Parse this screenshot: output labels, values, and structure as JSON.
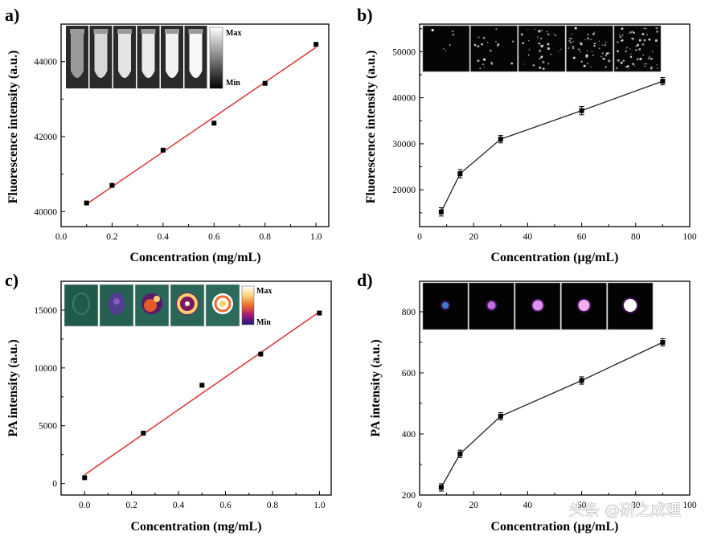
{
  "figure": {
    "watermark": "头条 @研之成理"
  },
  "colors": {
    "fit_line": "#d94040",
    "series": "#000000",
    "axis": "#000000"
  },
  "chart_data": [
    {
      "panel": "a)",
      "type": "scatter",
      "xlabel": "Concentration (mg/mL)",
      "ylabel": "Fluorescence intensity (a.u.)",
      "xlim": [
        0.0,
        1.05
      ],
      "ylim": [
        39600,
        45000
      ],
      "xticks": [
        0.0,
        0.2,
        0.4,
        0.6,
        0.8,
        1.0
      ],
      "yticks": [
        40000,
        42000,
        44000
      ],
      "x": [
        0.1,
        0.2,
        0.4,
        0.6,
        0.8,
        1.0
      ],
      "y": [
        40230,
        40700,
        41640,
        42360,
        43420,
        44460
      ],
      "fit_line": {
        "x": [
          0.1,
          1.0
        ],
        "y": [
          40200,
          44380
        ]
      },
      "inset": {
        "kind": "vial-photos",
        "count": 6,
        "colorbar": {
          "max_label": "Max",
          "min_label": "Min"
        }
      }
    },
    {
      "panel": "b)",
      "type": "line",
      "xlabel": "Concentration (µg/mL)",
      "ylabel": "Fluorescence intensity (a.u.)",
      "xlim": [
        0,
        100
      ],
      "ylim": [
        12000,
        56000
      ],
      "xticks": [
        0,
        20,
        40,
        60,
        80,
        100
      ],
      "yticks": [
        20000,
        30000,
        40000,
        50000
      ],
      "x": [
        8,
        15,
        30,
        60,
        90
      ],
      "y": [
        15200,
        23500,
        31000,
        37200,
        43600
      ],
      "yerr": [
        900,
        900,
        800,
        900,
        800
      ],
      "inset": {
        "kind": "fluorescence-micrographs",
        "count": 5
      }
    },
    {
      "panel": "c)",
      "type": "scatter",
      "xlabel": "Concentration (mg/mL)",
      "ylabel": "PA intensity (a.u.)",
      "xlim": [
        -0.1,
        1.05
      ],
      "ylim": [
        -1000,
        17500
      ],
      "xticks": [
        0.0,
        0.2,
        0.4,
        0.6,
        0.8,
        1.0
      ],
      "yticks": [
        0,
        5000,
        10000,
        15000
      ],
      "x": [
        0.0,
        0.25,
        0.5,
        0.75,
        1.0
      ],
      "y": [
        500,
        4350,
        8500,
        11200,
        14750
      ],
      "fit_line": {
        "x": [
          0.0,
          1.0
        ],
        "y": [
          750,
          14850
        ]
      },
      "inset": {
        "kind": "photoacoustic-images",
        "count": 5,
        "colorbar": {
          "max_label": "Max",
          "min_label": "Min"
        }
      }
    },
    {
      "panel": "d)",
      "type": "line",
      "xlabel": "Concentration (µg/mL)",
      "ylabel": "PA intensity (a.u.)",
      "xlim": [
        0,
        100
      ],
      "ylim": [
        200,
        900
      ],
      "xticks": [
        0,
        20,
        40,
        60,
        80,
        100
      ],
      "yticks": [
        200,
        400,
        600,
        800
      ],
      "x": [
        8,
        15,
        30,
        60,
        90
      ],
      "y": [
        225,
        335,
        458,
        575,
        700
      ],
      "yerr": [
        12,
        12,
        12,
        12,
        12
      ],
      "inset": {
        "kind": "photoacoustic-cell-images",
        "count": 5
      }
    }
  ]
}
